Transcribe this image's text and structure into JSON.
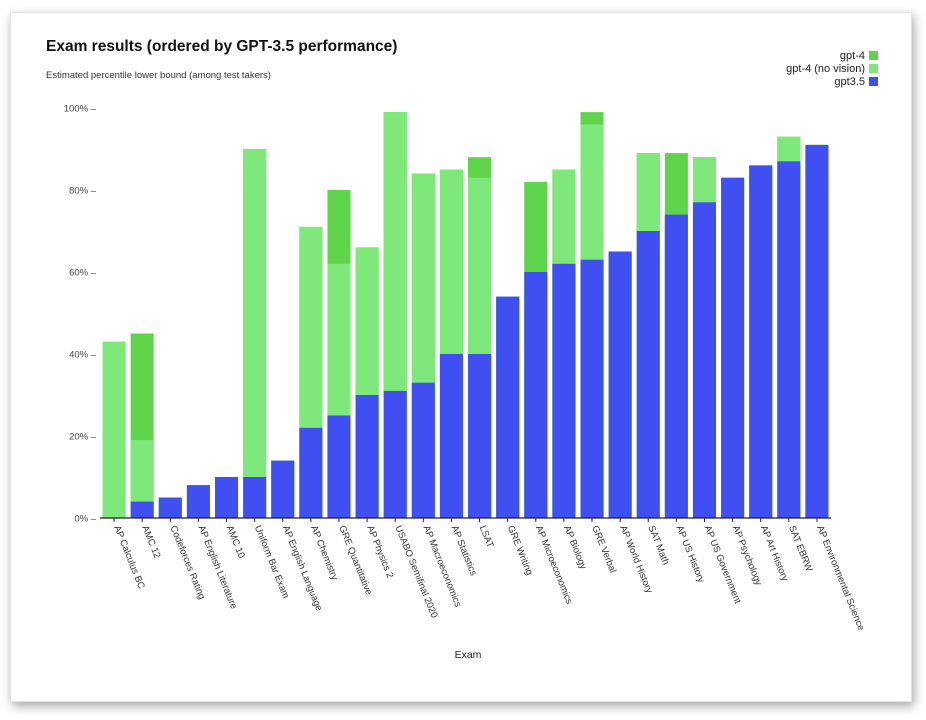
{
  "chart_data": {
    "type": "bar",
    "stacked": "overlay",
    "title": "Exam results (ordered by GPT-3.5 performance)",
    "subtitle": "Estimated percentile lower bound (among test takers)",
    "xlabel": "Exam",
    "ylabel": "",
    "ylim": [
      0,
      100
    ],
    "yticks": [
      0,
      20,
      40,
      60,
      80,
      100
    ],
    "ytick_labels": [
      "0% –",
      "20% –",
      "40% –",
      "60% –",
      "80% –",
      "100% –"
    ],
    "legend_position": "top-right",
    "categories": [
      "AP Calculus BC",
      "AMC 12",
      "Codeforces Rating",
      "AP English Literature",
      "AMC 10",
      "Uniform Bar Exam",
      "AP English Language",
      "AP Chemistry",
      "GRE Quantitative",
      "AP Physics 2",
      "USABO Semifinal 2020",
      "AP Macroeconomics",
      "AP Statistics",
      "LSAT",
      "GRE Writing",
      "AP Microeconomics",
      "AP Biology",
      "GRE Verbal",
      "AP World History",
      "SAT Math",
      "AP US History",
      "AP US Government",
      "AP Psychology",
      "AP Art History",
      "SAT EBRW",
      "AP Environmental Science"
    ],
    "series": [
      {
        "name": "gpt-4",
        "color": "#5fd34a",
        "values": [
          43,
          45,
          5,
          8,
          10,
          90,
          14,
          71,
          80,
          66,
          99,
          84,
          85,
          88,
          54,
          82,
          85,
          99,
          65,
          89,
          89,
          88,
          83,
          86,
          93,
          91
        ]
      },
      {
        "name": "gpt-4 (no vision)",
        "color": "#7ee87a",
        "values": [
          43,
          19,
          5,
          8,
          10,
          90,
          14,
          71,
          62,
          66,
          99,
          84,
          85,
          83,
          54,
          60,
          85,
          96,
          65,
          89,
          74,
          88,
          83,
          86,
          93,
          91
        ]
      },
      {
        "name": "gpt3.5",
        "color": "#3f4ff2",
        "values": [
          0,
          4,
          5,
          8,
          10,
          10,
          14,
          22,
          25,
          30,
          31,
          33,
          40,
          40,
          54,
          60,
          62,
          63,
          65,
          70,
          74,
          77,
          83,
          86,
          87,
          91
        ]
      }
    ]
  }
}
